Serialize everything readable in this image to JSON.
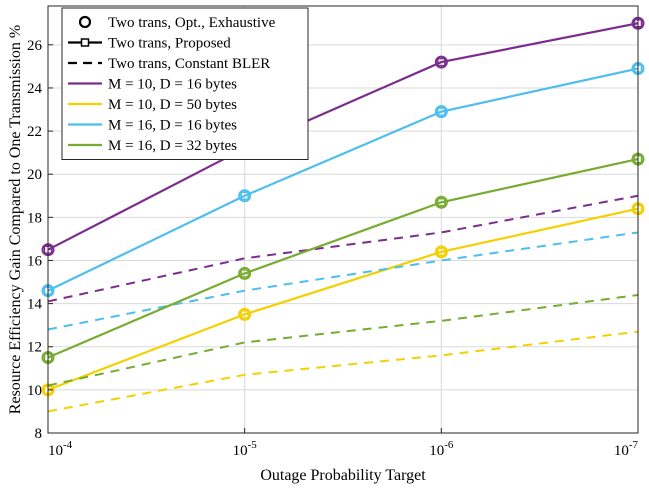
{
  "chart_data": {
    "type": "line",
    "xlabel": "Outage Probability Target",
    "ylabel": "Resource Efficiency Gain Compared to One Transmission %",
    "x": [
      0.0001,
      1e-05,
      1e-06,
      1e-07
    ],
    "x_tick_labels": [
      {
        "base": "10",
        "exp": "-4"
      },
      {
        "base": "10",
        "exp": "-5"
      },
      {
        "base": "10",
        "exp": "-6"
      },
      {
        "base": "10",
        "exp": "-7"
      }
    ],
    "xscale": "log-reversed",
    "ylim": [
      8,
      27.8
    ],
    "y_ticks": [
      8,
      10,
      12,
      14,
      16,
      18,
      20,
      22,
      24,
      26
    ],
    "grid": true,
    "legend_position": "top-left",
    "legend_style_entries": [
      {
        "label": "Two trans, Opt., Exhaustive",
        "marker": "circle"
      },
      {
        "label": "Two trans, Proposed",
        "marker": "square"
      },
      {
        "label": "Two trans, Constant BLER",
        "marker": "dashed"
      }
    ],
    "series": [
      {
        "name": "M = 10, D = 16 bytes",
        "color": "#7b2d8e",
        "exhaustive": [
          16.5,
          21.2,
          25.2,
          27.0
        ],
        "proposed": [
          16.5,
          21.2,
          25.2,
          27.0
        ],
        "constant_bler": [
          14.1,
          16.1,
          17.3,
          19.0
        ]
      },
      {
        "name": "M = 10, D = 50 bytes",
        "color": "#f5d000",
        "exhaustive": [
          10.0,
          13.5,
          16.4,
          18.4
        ],
        "proposed": [
          10.0,
          13.5,
          16.4,
          18.4
        ],
        "constant_bler": [
          9.0,
          10.7,
          11.6,
          12.7
        ]
      },
      {
        "name": "M = 16, D = 16 bytes",
        "color": "#4dbeee",
        "exhaustive": [
          14.6,
          19.0,
          22.9,
          24.9
        ],
        "proposed": [
          14.6,
          19.0,
          22.9,
          24.9
        ],
        "constant_bler": [
          12.8,
          14.6,
          16.0,
          17.3
        ]
      },
      {
        "name": "M = 16, D = 32 bytes",
        "color": "#77ac30",
        "exhaustive": [
          11.5,
          15.4,
          18.7,
          20.7
        ],
        "proposed": [
          11.5,
          15.4,
          18.7,
          20.7
        ],
        "constant_bler": [
          10.2,
          12.2,
          13.2,
          14.4
        ]
      }
    ]
  }
}
